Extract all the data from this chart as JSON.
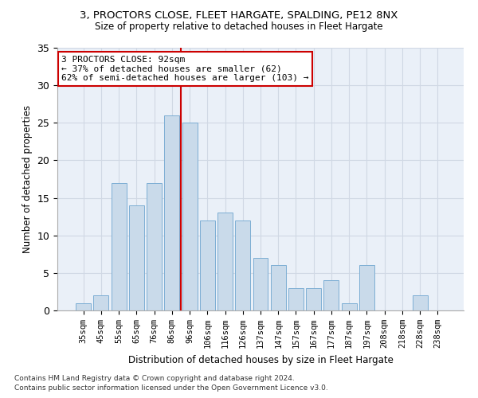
{
  "title1": "3, PROCTORS CLOSE, FLEET HARGATE, SPALDING, PE12 8NX",
  "title2": "Size of property relative to detached houses in Fleet Hargate",
  "xlabel": "Distribution of detached houses by size in Fleet Hargate",
  "ylabel": "Number of detached properties",
  "bar_labels": [
    "35sqm",
    "45sqm",
    "55sqm",
    "65sqm",
    "76sqm",
    "86sqm",
    "96sqm",
    "106sqm",
    "116sqm",
    "126sqm",
    "137sqm",
    "147sqm",
    "157sqm",
    "167sqm",
    "177sqm",
    "187sqm",
    "197sqm",
    "208sqm",
    "218sqm",
    "228sqm",
    "238sqm"
  ],
  "bar_values": [
    1,
    2,
    17,
    14,
    17,
    26,
    25,
    12,
    13,
    12,
    7,
    6,
    3,
    3,
    4,
    1,
    6,
    0,
    0,
    2,
    0
  ],
  "bar_color": "#c9daea",
  "bar_edgecolor": "#7daed4",
  "red_line_index": 5.5,
  "annotation_text": "3 PROCTORS CLOSE: 92sqm\n← 37% of detached houses are smaller (62)\n62% of semi-detached houses are larger (103) →",
  "annotation_box_color": "#ffffff",
  "annotation_box_edgecolor": "#cc0000",
  "vline_color": "#cc0000",
  "ylim": [
    0,
    35
  ],
  "yticks": [
    0,
    5,
    10,
    15,
    20,
    25,
    30,
    35
  ],
  "grid_color": "#d0d8e4",
  "background_color": "#eaf0f8",
  "footnote1": "Contains HM Land Registry data © Crown copyright and database right 2024.",
  "footnote2": "Contains public sector information licensed under the Open Government Licence v3.0."
}
